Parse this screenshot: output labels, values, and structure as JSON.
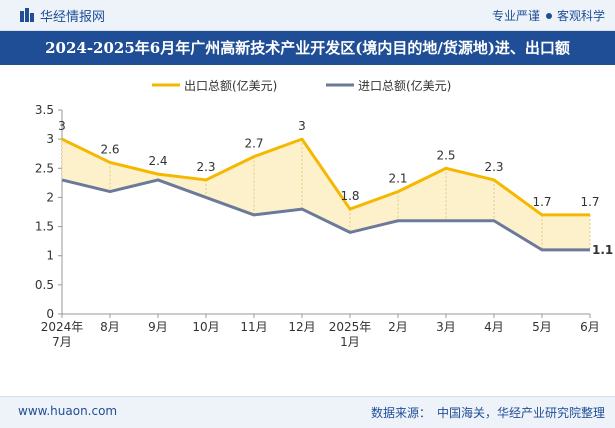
{
  "header": {
    "site_name": "华经情报网",
    "tag_left": "专业严谨",
    "tag_right": "客观科学",
    "title": "2024-2025年6月年广州高新技术产业开发区(境内目的地/货源地)进、出口额"
  },
  "footer": {
    "url": "www.huaon.com",
    "source_label": "数据来源：",
    "source_value": "中国海关，华经产业研究院整理"
  },
  "colors": {
    "brand": "#1f4e96",
    "export": "#f5b800",
    "import": "#6b7a99",
    "fill": "#fdf1cc"
  },
  "chart_data": {
    "type": "line",
    "categories": [
      "2024年\n7月",
      "8月",
      "9月",
      "10月",
      "11月",
      "12月",
      "2025年\n1月",
      "2月",
      "3月",
      "4月",
      "5月",
      "6月"
    ],
    "series": [
      {
        "name": "出口总额(亿美元)",
        "values": [
          3,
          2.6,
          2.4,
          2.3,
          2.7,
          3,
          1.8,
          2.1,
          2.5,
          2.3,
          1.7,
          1.7
        ]
      },
      {
        "name": "进口总额(亿美元)",
        "values": [
          2.3,
          2.1,
          2.3,
          2.0,
          1.7,
          1.8,
          1.4,
          1.6,
          1.6,
          1.6,
          1.1,
          1.1
        ]
      }
    ],
    "export_labels": [
      "3",
      "2.6",
      "2.4",
      "2.3",
      "2.7",
      "3",
      "1.8",
      "2.1",
      "2.5",
      "2.3",
      "1.7",
      "1.7"
    ],
    "import_last_label": "1.1",
    "ylim": [
      0,
      3.5
    ],
    "yticks": [
      "0",
      "0.5",
      "1",
      "1.5",
      "2",
      "2.5",
      "3",
      "3.5"
    ],
    "title": "",
    "xlabel": "",
    "ylabel": ""
  }
}
